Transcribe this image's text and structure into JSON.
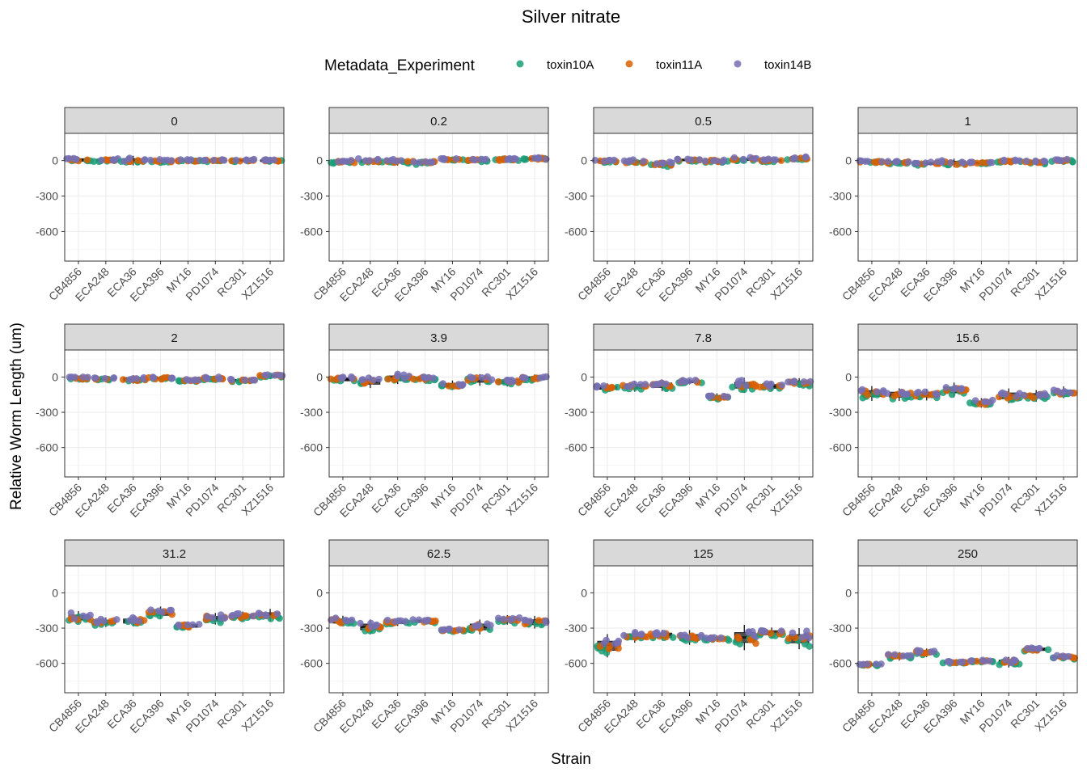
{
  "chart_data": {
    "type": "scatter",
    "subtype": "faceted jittered points with boxplots",
    "title": "Silver nitrate",
    "xlabel": "Strain",
    "ylabel": "Relative Worm Length (um)",
    "legend": {
      "title": "Metadata_Experiment",
      "placement": "top",
      "entries": [
        {
          "name": "toxin10A",
          "color": "#1b9e77"
        },
        {
          "name": "toxin11A",
          "color": "#d95f02"
        },
        {
          "name": "toxin14B",
          "color": "#7570b3"
        }
      ]
    },
    "categories": [
      "CB4856",
      "ECA248",
      "ECA36",
      "ECA396",
      "MY16",
      "PD1074",
      "RC301",
      "XZ1516"
    ],
    "ylim": [
      -850,
      230
    ],
    "yticks": [
      0,
      -300,
      -600
    ],
    "ytick_labels": [
      "0",
      "-300",
      "-600"
    ],
    "facets": [
      {
        "label": "0",
        "medians": [
          5,
          3,
          0,
          -5,
          0,
          0,
          2,
          0
        ],
        "spread": [
          30,
          25,
          45,
          25,
          20,
          15,
          20,
          15
        ]
      },
      {
        "label": "0.2",
        "medians": [
          -10,
          -5,
          -10,
          -15,
          10,
          5,
          10,
          15
        ],
        "spread": [
          25,
          30,
          35,
          30,
          15,
          20,
          25,
          25
        ]
      },
      {
        "label": "0.5",
        "medians": [
          -5,
          -10,
          -30,
          5,
          -5,
          10,
          0,
          15
        ],
        "spread": [
          25,
          25,
          40,
          20,
          25,
          25,
          25,
          30
        ]
      },
      {
        "label": "1",
        "medians": [
          -10,
          -15,
          -25,
          -20,
          -20,
          -5,
          -15,
          0
        ],
        "spread": [
          20,
          25,
          25,
          40,
          20,
          20,
          25,
          20
        ]
      },
      {
        "label": "2",
        "medians": [
          -10,
          -15,
          -20,
          -10,
          -30,
          -15,
          -30,
          10
        ],
        "spread": [
          25,
          20,
          40,
          20,
          20,
          25,
          25,
          30
        ]
      },
      {
        "label": "3.9",
        "medians": [
          -20,
          -40,
          -10,
          -15,
          -70,
          -25,
          -40,
          -10
        ],
        "spread": [
          35,
          60,
          55,
          35,
          45,
          55,
          45,
          35
        ]
      },
      {
        "label": "7.8",
        "medians": [
          -90,
          -80,
          -70,
          -40,
          -170,
          -70,
          -80,
          -50
        ],
        "spread": [
          40,
          50,
          55,
          25,
          35,
          70,
          45,
          45
        ]
      },
      {
        "label": "15.6",
        "medians": [
          -140,
          -150,
          -150,
          -110,
          -220,
          -160,
          -160,
          -130
        ],
        "spread": [
          70,
          60,
          55,
          70,
          45,
          70,
          55,
          55
        ]
      },
      {
        "label": "31.2",
        "medians": [
          -210,
          -250,
          -240,
          -170,
          -280,
          -220,
          -200,
          -190
        ],
        "spread": [
          60,
          45,
          50,
          60,
          35,
          55,
          45,
          60
        ]
      },
      {
        "label": "62.5",
        "medians": [
          -240,
          -290,
          -250,
          -240,
          -320,
          -290,
          -230,
          -250
        ],
        "spread": [
          50,
          70,
          35,
          30,
          25,
          70,
          45,
          60
        ]
      },
      {
        "label": "125",
        "medians": [
          -450,
          -370,
          -360,
          -380,
          -390,
          -380,
          -340,
          -390
        ],
        "spread": [
          110,
          60,
          50,
          70,
          30,
          120,
          50,
          100
        ]
      },
      {
        "label": "250",
        "medians": [
          -610,
          -540,
          -510,
          -590,
          -580,
          -590,
          -480,
          -550
        ],
        "spread": [
          15,
          40,
          40,
          20,
          15,
          50,
          30,
          30
        ]
      }
    ]
  }
}
